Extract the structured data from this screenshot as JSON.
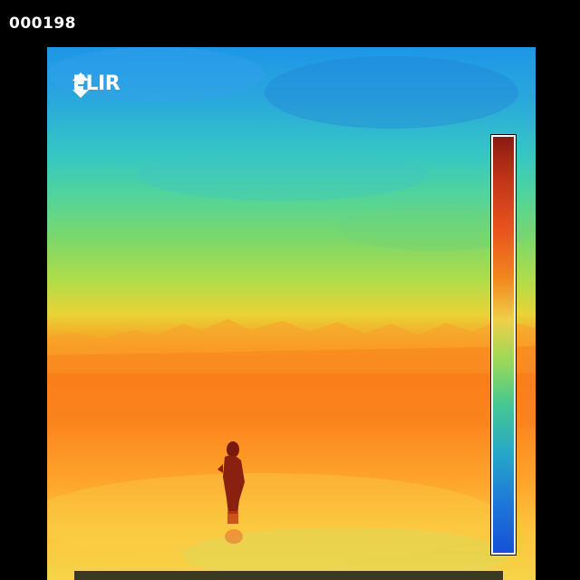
{
  "frame_counter": "000198",
  "camera": {
    "brand": "FLIR",
    "logo_icon": "flir-arrows-icon"
  },
  "palette": {
    "top": "#1e96e6",
    "middle": "#e8d436",
    "bottom": "#fb7e1c"
  },
  "scene": {
    "subject_icon": "person-silhouette-icon"
  }
}
